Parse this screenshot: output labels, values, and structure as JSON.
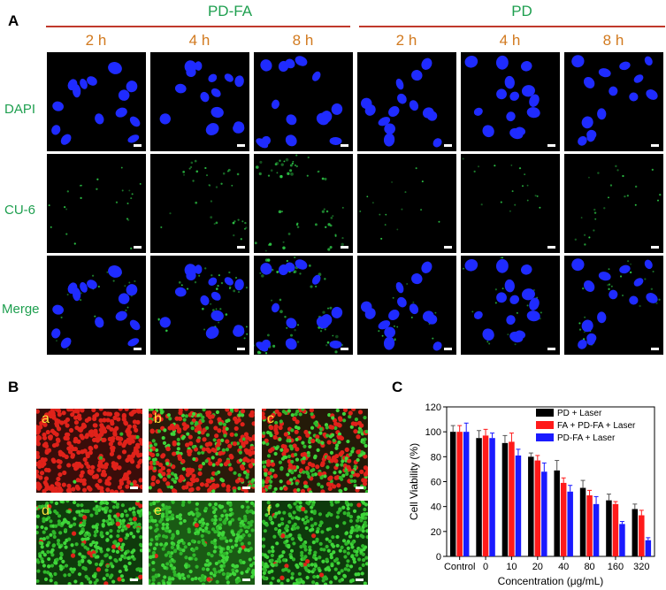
{
  "panelA": {
    "letter": "A",
    "groups": [
      {
        "title": "PD-FA",
        "times": [
          "2 h",
          "4 h",
          "8 h"
        ]
      },
      {
        "title": "PD",
        "times": [
          "2 h",
          "4 h",
          "8 h"
        ]
      }
    ],
    "rows": [
      "DAPI",
      "CU-6",
      "Merge"
    ]
  },
  "panelB": {
    "letter": "B",
    "tiles": [
      "a",
      "b",
      "c",
      "d",
      "e",
      "f"
    ]
  },
  "panelC": {
    "letter": "C"
  },
  "chart_data": {
    "type": "bar",
    "categories": [
      "Control",
      "0",
      "10",
      "20",
      "40",
      "80",
      "160",
      "320"
    ],
    "series": [
      {
        "name": "PD + Laser",
        "color": "#000000",
        "values": [
          100,
          95,
          91,
          80,
          69,
          55,
          45,
          38
        ],
        "errors": [
          5,
          6,
          6,
          3,
          8,
          6,
          5,
          4
        ]
      },
      {
        "name": "FA + PD-FA + Laser",
        "color": "#ff1a1a",
        "values": [
          100,
          97,
          92,
          77,
          59,
          49,
          42,
          33
        ],
        "errors": [
          5,
          5,
          7,
          4,
          4,
          4,
          2,
          4
        ]
      },
      {
        "name": "PD-FA + Laser",
        "color": "#1a1aff",
        "values": [
          100,
          95,
          81,
          68,
          52,
          42,
          26,
          13
        ],
        "errors": [
          7,
          4,
          5,
          7,
          5,
          6,
          2,
          2
        ]
      }
    ],
    "xlabel": "Concentration (μg/mL)",
    "ylabel": "Cell Viability (%)",
    "ylim": [
      0,
      120
    ],
    "yticks": [
      "0",
      "20",
      "40",
      "60",
      "80",
      "100",
      "120"
    ],
    "legend": "top-right"
  }
}
